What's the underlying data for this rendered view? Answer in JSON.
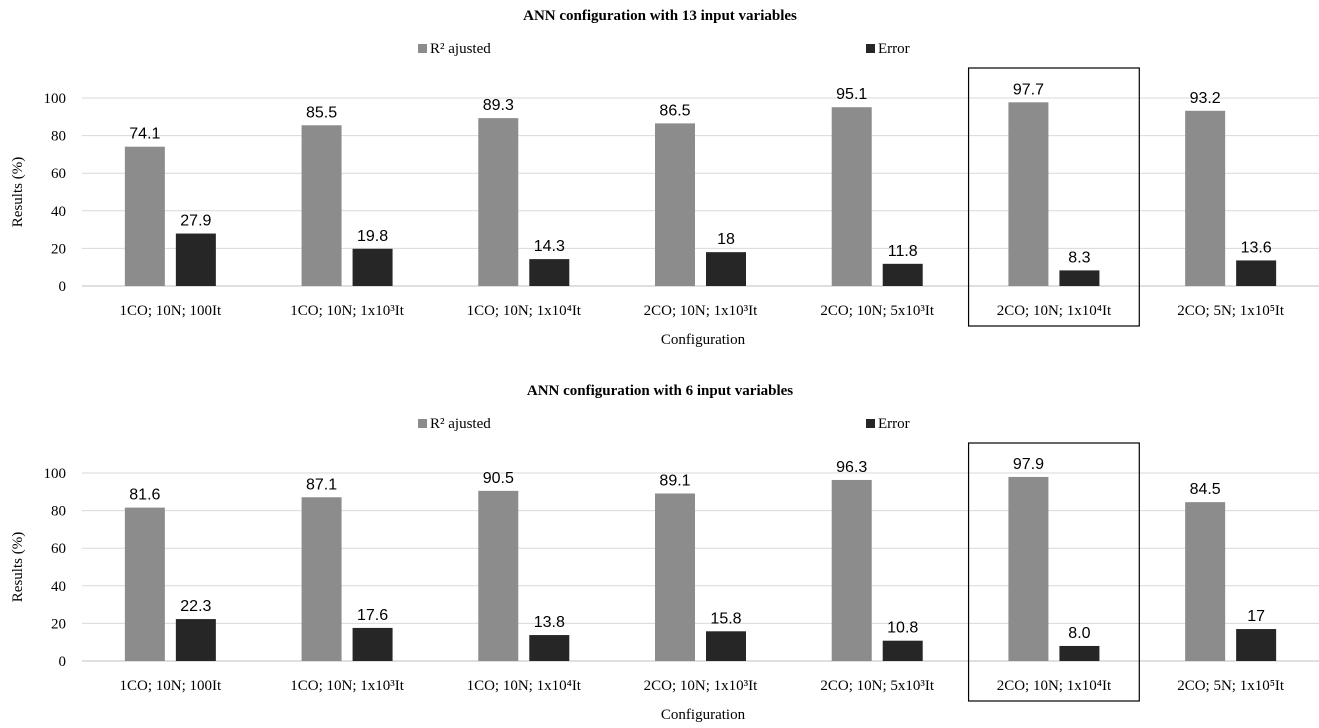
{
  "chart_data": [
    {
      "type": "bar",
      "title": "ANN configuration  with 13 input  variables",
      "xlabel": "Configuration",
      "ylabel": "Results  (%)",
      "ylim": [
        0,
        100
      ],
      "yticks": [
        "0",
        "20",
        "40",
        "60",
        "80",
        "100"
      ],
      "grid": true,
      "legend_position": "top",
      "categories": [
        "1CO; 10N; 100It",
        "1CO; 10N; 1x10³It",
        "1CO; 10N; 1x10⁴It",
        "2CO; 10N; 1x10³It",
        "2CO; 10N; 5x10³It",
        "2CO; 10N; 1x10⁴It",
        "2CO; 5N; 1x10⁵It"
      ],
      "highlighted_category_index": 5,
      "series": [
        {
          "name": "R² ajusted",
          "color": "#8c8c8c",
          "values": [
            74.1,
            85.5,
            89.3,
            86.5,
            95.1,
            97.7,
            93.2
          ],
          "labels": [
            "74.1",
            "85.5",
            "89.3",
            "86.5",
            "95.1",
            "97.7",
            "93.2"
          ]
        },
        {
          "name": "Error",
          "color": "#262626",
          "values": [
            27.9,
            19.8,
            14.3,
            18,
            11.8,
            8.3,
            13.6
          ],
          "labels": [
            "27.9",
            "19.8",
            "14.3",
            "18",
            "11.8",
            "8.3",
            "13.6"
          ]
        }
      ]
    },
    {
      "type": "bar",
      "title": "ANN configuration  with  6  input  variables",
      "xlabel": "Configuration",
      "ylabel": "Results  (%)",
      "ylim": [
        0,
        100
      ],
      "yticks": [
        "0",
        "20",
        "40",
        "60",
        "80",
        "100"
      ],
      "grid": true,
      "legend_position": "top",
      "categories": [
        "1CO; 10N; 100It",
        "1CO; 10N; 1x10³It",
        "1CO; 10N; 1x10⁴It",
        "2CO; 10N; 1x10³It",
        "2CO; 10N; 5x10³It",
        "2CO; 10N; 1x10⁴It",
        "2CO; 5N; 1x10⁵It"
      ],
      "highlighted_category_index": 5,
      "series": [
        {
          "name": "R² ajusted",
          "color": "#8c8c8c",
          "values": [
            81.6,
            87.1,
            90.5,
            89.1,
            96.3,
            97.9,
            84.5
          ],
          "labels": [
            "81.6",
            "87.1",
            "90.5",
            "89.1",
            "96.3",
            "97.9",
            "84.5"
          ]
        },
        {
          "name": "Error",
          "color": "#262626",
          "values": [
            22.3,
            17.6,
            13.8,
            15.8,
            10.8,
            8.0,
            17
          ],
          "labels": [
            "22.3",
            "17.6",
            "13.8",
            "15.8",
            "10.8",
            "8.0",
            "17"
          ]
        }
      ]
    }
  ]
}
